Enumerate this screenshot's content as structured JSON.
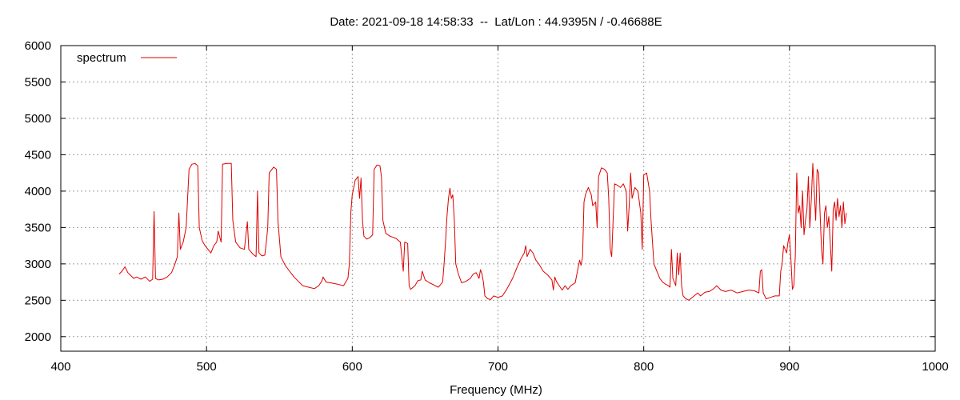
{
  "chart_data": {
    "type": "line",
    "title": "Date: 2021-09-18 14:58:33  --  Lat/Lon : 44.9395N / -0.46688E",
    "xlabel": "Frequency (MHz)",
    "ylabel": "",
    "xlim": [
      400,
      1000
    ],
    "ylim": [
      1800,
      6000
    ],
    "xticks": [
      400,
      500,
      600,
      700,
      800,
      900,
      1000
    ],
    "yticks": [
      2000,
      2500,
      3000,
      3500,
      4000,
      4500,
      5000,
      5500,
      6000
    ],
    "grid": true,
    "legend_position": "top-left",
    "series": [
      {
        "name": "spectrum",
        "color": "#e00000",
        "points": [
          [
            440,
            2860
          ],
          [
            442,
            2900
          ],
          [
            444,
            2960
          ],
          [
            446,
            2880
          ],
          [
            448,
            2840
          ],
          [
            450,
            2800
          ],
          [
            452,
            2820
          ],
          [
            455,
            2790
          ],
          [
            458,
            2820
          ],
          [
            461,
            2760
          ],
          [
            463,
            2790
          ],
          [
            464,
            3720
          ],
          [
            465,
            2800
          ],
          [
            467,
            2780
          ],
          [
            470,
            2790
          ],
          [
            473,
            2820
          ],
          [
            476,
            2880
          ],
          [
            478,
            2980
          ],
          [
            480,
            3100
          ],
          [
            481,
            3700
          ],
          [
            482,
            3200
          ],
          [
            484,
            3300
          ],
          [
            486,
            3500
          ],
          [
            488,
            4300
          ],
          [
            490,
            4370
          ],
          [
            492,
            4380
          ],
          [
            494,
            4350
          ],
          [
            495,
            3500
          ],
          [
            497,
            3320
          ],
          [
            499,
            3250
          ],
          [
            501,
            3200
          ],
          [
            503,
            3150
          ],
          [
            505,
            3250
          ],
          [
            507,
            3300
          ],
          [
            508,
            3450
          ],
          [
            510,
            3300
          ],
          [
            511,
            4370
          ],
          [
            514,
            4380
          ],
          [
            517,
            4380
          ],
          [
            518,
            3600
          ],
          [
            520,
            3300
          ],
          [
            523,
            3220
          ],
          [
            526,
            3200
          ],
          [
            528,
            3580
          ],
          [
            529,
            3200
          ],
          [
            532,
            3130
          ],
          [
            534,
            3100
          ],
          [
            535,
            4000
          ],
          [
            536,
            3150
          ],
          [
            538,
            3110
          ],
          [
            540,
            3120
          ],
          [
            541,
            3300
          ],
          [
            542,
            3500
          ],
          [
            543,
            4250
          ],
          [
            546,
            4330
          ],
          [
            548,
            4300
          ],
          [
            549,
            3600
          ],
          [
            551,
            3100
          ],
          [
            554,
            2980
          ],
          [
            557,
            2900
          ],
          [
            560,
            2820
          ],
          [
            563,
            2760
          ],
          [
            566,
            2700
          ],
          [
            570,
            2680
          ],
          [
            574,
            2660
          ],
          [
            577,
            2700
          ],
          [
            579,
            2760
          ],
          [
            580,
            2820
          ],
          [
            582,
            2750
          ],
          [
            585,
            2740
          ],
          [
            590,
            2720
          ],
          [
            594,
            2700
          ],
          [
            597,
            2800
          ],
          [
            598,
            3000
          ],
          [
            599,
            3700
          ],
          [
            600,
            3950
          ],
          [
            601,
            4050
          ],
          [
            602,
            4150
          ],
          [
            604,
            4200
          ],
          [
            605,
            3900
          ],
          [
            606,
            4180
          ],
          [
            607,
            3600
          ],
          [
            608,
            3380
          ],
          [
            610,
            3340
          ],
          [
            612,
            3360
          ],
          [
            614,
            3400
          ],
          [
            615,
            4300
          ],
          [
            617,
            4360
          ],
          [
            619,
            4350
          ],
          [
            620,
            4200
          ],
          [
            621,
            3600
          ],
          [
            623,
            3420
          ],
          [
            626,
            3380
          ],
          [
            630,
            3350
          ],
          [
            633,
            3300
          ],
          [
            634,
            3100
          ],
          [
            635,
            2900
          ],
          [
            636,
            3300
          ],
          [
            638,
            3280
          ],
          [
            639,
            2700
          ],
          [
            640,
            2650
          ],
          [
            643,
            2700
          ],
          [
            645,
            2770
          ],
          [
            647,
            2780
          ],
          [
            648,
            2900
          ],
          [
            650,
            2780
          ],
          [
            653,
            2740
          ],
          [
            656,
            2710
          ],
          [
            659,
            2680
          ],
          [
            660,
            2700
          ],
          [
            662,
            2750
          ],
          [
            663,
            3000
          ],
          [
            664,
            3300
          ],
          [
            665,
            3650
          ],
          [
            666,
            3900
          ],
          [
            667,
            4040
          ],
          [
            668,
            3900
          ],
          [
            669,
            3950
          ],
          [
            670,
            3600
          ],
          [
            671,
            3000
          ],
          [
            673,
            2850
          ],
          [
            675,
            2740
          ],
          [
            678,
            2760
          ],
          [
            681,
            2800
          ],
          [
            683,
            2860
          ],
          [
            685,
            2880
          ],
          [
            687,
            2800
          ],
          [
            688,
            2920
          ],
          [
            689,
            2860
          ],
          [
            690,
            2750
          ],
          [
            691,
            2560
          ],
          [
            693,
            2520
          ],
          [
            695,
            2510
          ],
          [
            697,
            2560
          ],
          [
            700,
            2540
          ],
          [
            703,
            2560
          ],
          [
            706,
            2650
          ],
          [
            710,
            2800
          ],
          [
            713,
            2950
          ],
          [
            716,
            3080
          ],
          [
            718,
            3150
          ],
          [
            719,
            3250
          ],
          [
            720,
            3100
          ],
          [
            722,
            3200
          ],
          [
            724,
            3150
          ],
          [
            726,
            3050
          ],
          [
            728,
            3000
          ],
          [
            731,
            2900
          ],
          [
            734,
            2850
          ],
          [
            737,
            2780
          ],
          [
            738,
            2640
          ],
          [
            739,
            2820
          ],
          [
            740,
            2760
          ],
          [
            742,
            2700
          ],
          [
            744,
            2640
          ],
          [
            746,
            2700
          ],
          [
            748,
            2650
          ],
          [
            750,
            2700
          ],
          [
            753,
            2740
          ],
          [
            755,
            2950
          ],
          [
            756,
            3050
          ],
          [
            757,
            2980
          ],
          [
            758,
            3100
          ],
          [
            759,
            3850
          ],
          [
            760,
            3950
          ],
          [
            762,
            4050
          ],
          [
            764,
            3950
          ],
          [
            765,
            3800
          ],
          [
            767,
            3850
          ],
          [
            768,
            3500
          ],
          [
            769,
            4200
          ],
          [
            771,
            4320
          ],
          [
            773,
            4300
          ],
          [
            775,
            4250
          ],
          [
            776,
            3900
          ],
          [
            777,
            3200
          ],
          [
            778,
            3100
          ],
          [
            779,
            3600
          ],
          [
            780,
            4100
          ],
          [
            782,
            4080
          ],
          [
            784,
            4050
          ],
          [
            786,
            4100
          ],
          [
            788,
            4000
          ],
          [
            789,
            3450
          ],
          [
            790,
            3800
          ],
          [
            791,
            4250
          ],
          [
            792,
            3900
          ],
          [
            794,
            4050
          ],
          [
            796,
            4000
          ],
          [
            798,
            3700
          ],
          [
            799,
            3200
          ],
          [
            800,
            4220
          ],
          [
            802,
            4250
          ],
          [
            804,
            4000
          ],
          [
            805,
            3600
          ],
          [
            806,
            3300
          ],
          [
            807,
            3000
          ],
          [
            809,
            2900
          ],
          [
            811,
            2800
          ],
          [
            813,
            2750
          ],
          [
            815,
            2720
          ],
          [
            817,
            2700
          ],
          [
            818,
            2680
          ],
          [
            819,
            3200
          ],
          [
            820,
            2800
          ],
          [
            822,
            2700
          ],
          [
            823,
            3150
          ],
          [
            824,
            2850
          ],
          [
            825,
            3150
          ],
          [
            826,
            2700
          ],
          [
            827,
            2560
          ],
          [
            829,
            2520
          ],
          [
            831,
            2500
          ],
          [
            834,
            2550
          ],
          [
            837,
            2600
          ],
          [
            839,
            2560
          ],
          [
            842,
            2610
          ],
          [
            845,
            2620
          ],
          [
            848,
            2660
          ],
          [
            850,
            2700
          ],
          [
            853,
            2640
          ],
          [
            856,
            2620
          ],
          [
            860,
            2640
          ],
          [
            864,
            2600
          ],
          [
            868,
            2620
          ],
          [
            872,
            2640
          ],
          [
            876,
            2630
          ],
          [
            879,
            2600
          ],
          [
            880,
            2900
          ],
          [
            881,
            2920
          ],
          [
            882,
            2600
          ],
          [
            884,
            2520
          ],
          [
            887,
            2540
          ],
          [
            890,
            2560
          ],
          [
            893,
            2560
          ],
          [
            894,
            2900
          ],
          [
            895,
            3000
          ],
          [
            896,
            3250
          ],
          [
            897,
            3200
          ],
          [
            898,
            3150
          ],
          [
            899,
            3300
          ],
          [
            900,
            3400
          ],
          [
            901,
            3050
          ],
          [
            902,
            2650
          ],
          [
            903,
            2700
          ],
          [
            904,
            3100
          ],
          [
            905,
            4250
          ],
          [
            906,
            3700
          ],
          [
            907,
            3800
          ],
          [
            908,
            3500
          ],
          [
            909,
            4000
          ],
          [
            910,
            3400
          ],
          [
            911,
            3600
          ],
          [
            912,
            3750
          ],
          [
            913,
            4200
          ],
          [
            914,
            3500
          ],
          [
            915,
            3900
          ],
          [
            916,
            4380
          ],
          [
            917,
            4000
          ],
          [
            918,
            3600
          ],
          [
            919,
            4300
          ],
          [
            920,
            4250
          ],
          [
            921,
            3700
          ],
          [
            922,
            3200
          ],
          [
            923,
            3000
          ],
          [
            924,
            3700
          ],
          [
            925,
            3800
          ],
          [
            926,
            3500
          ],
          [
            927,
            3650
          ],
          [
            928,
            3300
          ],
          [
            929,
            2900
          ],
          [
            930,
            3750
          ],
          [
            931,
            3850
          ],
          [
            932,
            3600
          ],
          [
            933,
            3900
          ],
          [
            934,
            3650
          ],
          [
            935,
            3800
          ],
          [
            936,
            3500
          ],
          [
            937,
            3850
          ],
          [
            938,
            3550
          ],
          [
            939,
            3700
          ]
        ]
      }
    ]
  }
}
